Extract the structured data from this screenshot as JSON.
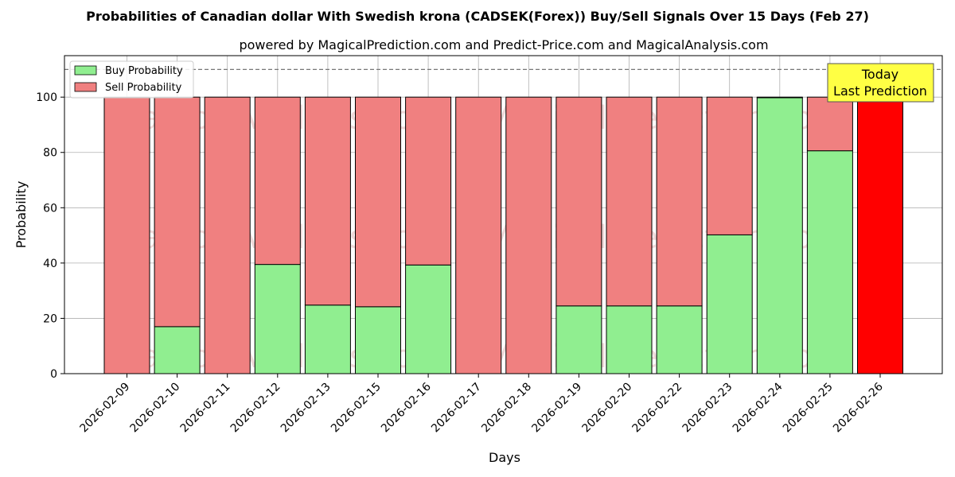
{
  "chart_data": {
    "type": "bar",
    "title": "Probabilities of Canadian dollar With Swedish krona (CADSEK(Forex)) Buy/Sell Signals Over 15 Days (Feb 27)",
    "subtitle": "powered by MagicalPrediction.com and Predict-Price.com and MagicalAnalysis.com",
    "xlabel": "Days",
    "ylabel": "Probability",
    "ylim": [
      0,
      115
    ],
    "yticks": [
      0,
      20,
      40,
      60,
      80,
      100
    ],
    "reference_line": 110,
    "grid": true,
    "legend_position": "top-left",
    "categories": [
      "2026-02-09",
      "2026-02-10",
      "2026-02-11",
      "2026-02-12",
      "2026-02-13",
      "2026-02-15",
      "2026-02-16",
      "2026-02-17",
      "2026-02-18",
      "2026-02-19",
      "2026-02-20",
      "2026-02-22",
      "2026-02-23",
      "2026-02-24",
      "2026-02-25",
      "2026-02-26"
    ],
    "series": [
      {
        "name": "Buy Probability",
        "color": "#90ee90",
        "values": [
          0,
          17,
          0,
          39.5,
          24.8,
          24.2,
          39.3,
          0,
          0,
          24.5,
          24.5,
          24.5,
          50.2,
          99.8,
          80.6,
          0
        ]
      },
      {
        "name": "Sell Probability",
        "color": "#f08080",
        "values": [
          100,
          83,
          100,
          60.5,
          75.2,
          75.8,
          60.7,
          100,
          100,
          75.5,
          75.5,
          75.5,
          49.8,
          0.2,
          19.4,
          100
        ]
      }
    ],
    "highlight": {
      "index": 15,
      "color": "#ff0000"
    },
    "annotation": {
      "line1": "Today",
      "line2": "Last Prediction",
      "color": "#ffff44"
    },
    "watermarks": [
      "MagicalAnalysis.com",
      "MagicalPrediction.com"
    ]
  }
}
